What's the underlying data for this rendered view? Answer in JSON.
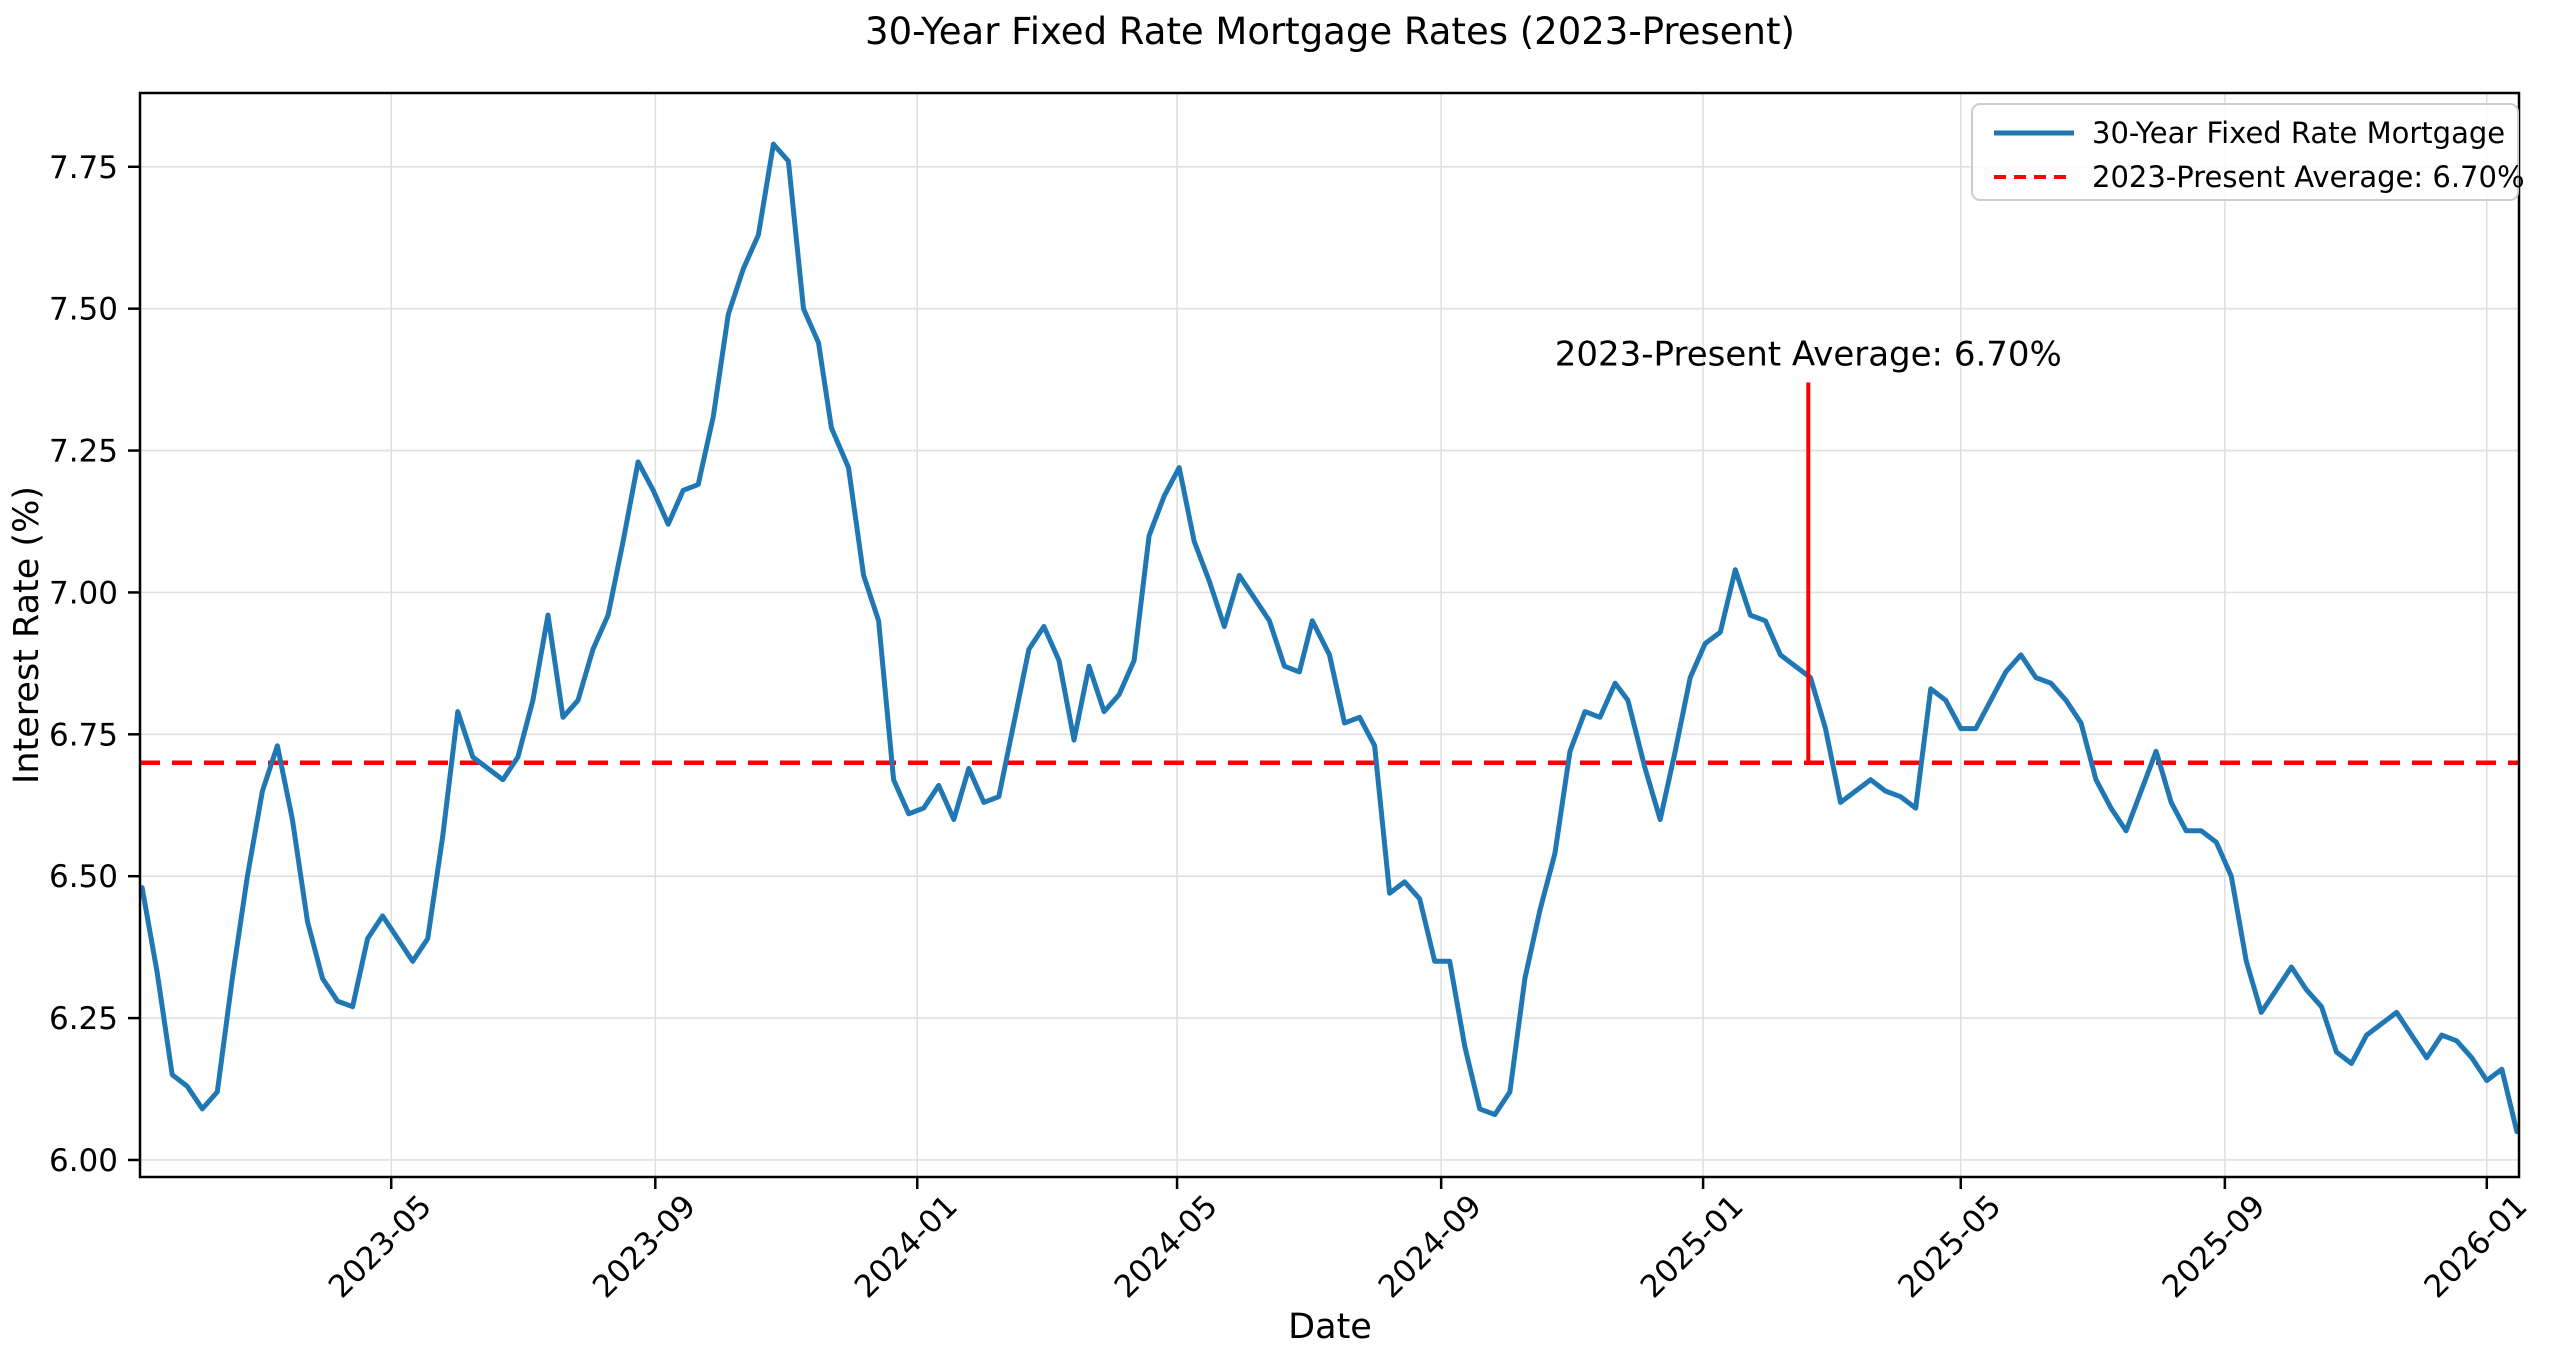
{
  "chart_data": {
    "type": "line",
    "title": "30-Year Fixed Rate Mortgage Rates (2023-Present)",
    "xlabel": "Date",
    "ylabel": "Interest Rate (%)",
    "xlim": [
      "2023-01-04",
      "2026-01-16"
    ],
    "ylim": [
      5.97,
      7.88
    ],
    "grid": true,
    "grid_color": "#e0e0e0",
    "background": "#ffffff",
    "x_ticks": [
      {
        "date": "2023-05-01",
        "label": "2023-05"
      },
      {
        "date": "2023-09-01",
        "label": "2023-09"
      },
      {
        "date": "2024-01-01",
        "label": "2024-01"
      },
      {
        "date": "2024-05-01",
        "label": "2024-05"
      },
      {
        "date": "2024-09-01",
        "label": "2024-09"
      },
      {
        "date": "2025-01-01",
        "label": "2025-01"
      },
      {
        "date": "2025-05-01",
        "label": "2025-05"
      },
      {
        "date": "2025-09-01",
        "label": "2025-09"
      },
      {
        "date": "2026-01-01",
        "label": "2026-01"
      }
    ],
    "y_ticks": [
      "6.00",
      "6.25",
      "6.50",
      "6.75",
      "7.00",
      "7.25",
      "7.50",
      "7.75"
    ],
    "series": [
      {
        "name": "30-Year Fixed Rate Mortgage",
        "color": "#1f77b4",
        "points": [
          [
            "2023-01-05",
            6.48
          ],
          [
            "2023-01-12",
            6.33
          ],
          [
            "2023-01-19",
            6.15
          ],
          [
            "2023-01-26",
            6.13
          ],
          [
            "2023-02-02",
            6.09
          ],
          [
            "2023-02-09",
            6.12
          ],
          [
            "2023-02-16",
            6.32
          ],
          [
            "2023-02-23",
            6.5
          ],
          [
            "2023-03-02",
            6.65
          ],
          [
            "2023-03-09",
            6.73
          ],
          [
            "2023-03-16",
            6.6
          ],
          [
            "2023-03-23",
            6.42
          ],
          [
            "2023-03-30",
            6.32
          ],
          [
            "2023-04-06",
            6.28
          ],
          [
            "2023-04-13",
            6.27
          ],
          [
            "2023-04-20",
            6.39
          ],
          [
            "2023-04-27",
            6.43
          ],
          [
            "2023-05-04",
            6.39
          ],
          [
            "2023-05-11",
            6.35
          ],
          [
            "2023-05-18",
            6.39
          ],
          [
            "2023-05-25",
            6.57
          ],
          [
            "2023-06-01",
            6.79
          ],
          [
            "2023-06-08",
            6.71
          ],
          [
            "2023-06-15",
            6.69
          ],
          [
            "2023-06-22",
            6.67
          ],
          [
            "2023-06-29",
            6.71
          ],
          [
            "2023-07-06",
            6.81
          ],
          [
            "2023-07-13",
            6.96
          ],
          [
            "2023-07-20",
            6.78
          ],
          [
            "2023-07-27",
            6.81
          ],
          [
            "2023-08-03",
            6.9
          ],
          [
            "2023-08-10",
            6.96
          ],
          [
            "2023-08-17",
            7.09
          ],
          [
            "2023-08-24",
            7.23
          ],
          [
            "2023-08-31",
            7.18
          ],
          [
            "2023-09-07",
            7.12
          ],
          [
            "2023-09-14",
            7.18
          ],
          [
            "2023-09-21",
            7.19
          ],
          [
            "2023-09-28",
            7.31
          ],
          [
            "2023-10-05",
            7.49
          ],
          [
            "2023-10-12",
            7.57
          ],
          [
            "2023-10-19",
            7.63
          ],
          [
            "2023-10-26",
            7.79
          ],
          [
            "2023-11-02",
            7.76
          ],
          [
            "2023-11-09",
            7.5
          ],
          [
            "2023-11-16",
            7.44
          ],
          [
            "2023-11-22",
            7.29
          ],
          [
            "2023-11-30",
            7.22
          ],
          [
            "2023-12-07",
            7.03
          ],
          [
            "2023-12-14",
            6.95
          ],
          [
            "2023-12-21",
            6.67
          ],
          [
            "2023-12-28",
            6.61
          ],
          [
            "2024-01-04",
            6.62
          ],
          [
            "2024-01-11",
            6.66
          ],
          [
            "2024-01-18",
            6.6
          ],
          [
            "2024-01-25",
            6.69
          ],
          [
            "2024-02-01",
            6.63
          ],
          [
            "2024-02-08",
            6.64
          ],
          [
            "2024-02-15",
            6.77
          ],
          [
            "2024-02-22",
            6.9
          ],
          [
            "2024-02-29",
            6.94
          ],
          [
            "2024-03-07",
            6.88
          ],
          [
            "2024-03-14",
            6.74
          ],
          [
            "2024-03-21",
            6.87
          ],
          [
            "2024-03-28",
            6.79
          ],
          [
            "2024-04-04",
            6.82
          ],
          [
            "2024-04-11",
            6.88
          ],
          [
            "2024-04-18",
            7.1
          ],
          [
            "2024-04-25",
            7.17
          ],
          [
            "2024-05-02",
            7.22
          ],
          [
            "2024-05-09",
            7.09
          ],
          [
            "2024-05-16",
            7.02
          ],
          [
            "2024-05-23",
            6.94
          ],
          [
            "2024-05-30",
            7.03
          ],
          [
            "2024-06-06",
            6.99
          ],
          [
            "2024-06-13",
            6.95
          ],
          [
            "2024-06-20",
            6.87
          ],
          [
            "2024-06-27",
            6.86
          ],
          [
            "2024-07-03",
            6.95
          ],
          [
            "2024-07-11",
            6.89
          ],
          [
            "2024-07-18",
            6.77
          ],
          [
            "2024-07-25",
            6.78
          ],
          [
            "2024-08-01",
            6.73
          ],
          [
            "2024-08-08",
            6.47
          ],
          [
            "2024-08-15",
            6.49
          ],
          [
            "2024-08-22",
            6.46
          ],
          [
            "2024-08-29",
            6.35
          ],
          [
            "2024-09-05",
            6.35
          ],
          [
            "2024-09-12",
            6.2
          ],
          [
            "2024-09-19",
            6.09
          ],
          [
            "2024-09-26",
            6.08
          ],
          [
            "2024-10-03",
            6.12
          ],
          [
            "2024-10-10",
            6.32
          ],
          [
            "2024-10-17",
            6.44
          ],
          [
            "2024-10-24",
            6.54
          ],
          [
            "2024-10-31",
            6.72
          ],
          [
            "2024-11-07",
            6.79
          ],
          [
            "2024-11-14",
            6.78
          ],
          [
            "2024-11-21",
            6.84
          ],
          [
            "2024-11-27",
            6.81
          ],
          [
            "2024-12-05",
            6.69
          ],
          [
            "2024-12-12",
            6.6
          ],
          [
            "2024-12-19",
            6.72
          ],
          [
            "2024-12-26",
            6.85
          ],
          [
            "2025-01-02",
            6.91
          ],
          [
            "2025-01-09",
            6.93
          ],
          [
            "2025-01-16",
            7.04
          ],
          [
            "2025-01-23",
            6.96
          ],
          [
            "2025-01-30",
            6.95
          ],
          [
            "2025-02-06",
            6.89
          ],
          [
            "2025-02-13",
            6.87
          ],
          [
            "2025-02-20",
            6.85
          ],
          [
            "2025-02-27",
            6.76
          ],
          [
            "2025-03-06",
            6.63
          ],
          [
            "2025-03-13",
            6.65
          ],
          [
            "2025-03-20",
            6.67
          ],
          [
            "2025-03-27",
            6.65
          ],
          [
            "2025-04-03",
            6.64
          ],
          [
            "2025-04-10",
            6.62
          ],
          [
            "2025-04-17",
            6.83
          ],
          [
            "2025-04-24",
            6.81
          ],
          [
            "2025-05-01",
            6.76
          ],
          [
            "2025-05-08",
            6.76
          ],
          [
            "2025-05-15",
            6.81
          ],
          [
            "2025-05-22",
            6.86
          ],
          [
            "2025-05-29",
            6.89
          ],
          [
            "2025-06-05",
            6.85
          ],
          [
            "2025-06-12",
            6.84
          ],
          [
            "2025-06-19",
            6.81
          ],
          [
            "2025-06-26",
            6.77
          ],
          [
            "2025-07-03",
            6.67
          ],
          [
            "2025-07-10",
            6.62
          ],
          [
            "2025-07-17",
            6.58
          ],
          [
            "2025-07-24",
            6.65
          ],
          [
            "2025-07-31",
            6.72
          ],
          [
            "2025-08-07",
            6.63
          ],
          [
            "2025-08-14",
            6.58
          ],
          [
            "2025-08-21",
            6.58
          ],
          [
            "2025-08-28",
            6.56
          ],
          [
            "2025-09-04",
            6.5
          ],
          [
            "2025-09-11",
            6.35
          ],
          [
            "2025-09-18",
            6.26
          ],
          [
            "2025-09-25",
            6.3
          ],
          [
            "2025-10-02",
            6.34
          ],
          [
            "2025-10-09",
            6.3
          ],
          [
            "2025-10-16",
            6.27
          ],
          [
            "2025-10-23",
            6.19
          ],
          [
            "2025-10-30",
            6.17
          ],
          [
            "2025-11-06",
            6.22
          ],
          [
            "2025-11-13",
            6.24
          ],
          [
            "2025-11-20",
            6.26
          ],
          [
            "2025-11-27",
            6.22
          ],
          [
            "2025-12-04",
            6.18
          ],
          [
            "2025-12-11",
            6.22
          ],
          [
            "2025-12-18",
            6.21
          ],
          [
            "2025-12-25",
            6.18
          ],
          [
            "2026-01-01",
            6.14
          ],
          [
            "2026-01-08",
            6.16
          ],
          [
            "2026-01-15",
            6.05
          ]
        ]
      }
    ],
    "average_line": {
      "label": "2023-Present Average: 6.70%",
      "value": 6.7,
      "color": "#ff0000",
      "style": "dashed"
    },
    "annotation": {
      "text": "2023-Present Average: 6.70%",
      "x_date": "2025-02-19",
      "text_y": 7.4,
      "line_top": 7.37,
      "line_bottom": 6.7,
      "color": "#ff0000"
    },
    "legend": {
      "position": "upper right",
      "entries": [
        {
          "label": "30-Year Fixed Rate Mortgage",
          "color": "#1f77b4",
          "dash": "solid"
        },
        {
          "label": "2023-Present Average: 6.70%",
          "color": "#ff0000",
          "dash": "dashed"
        }
      ]
    }
  }
}
